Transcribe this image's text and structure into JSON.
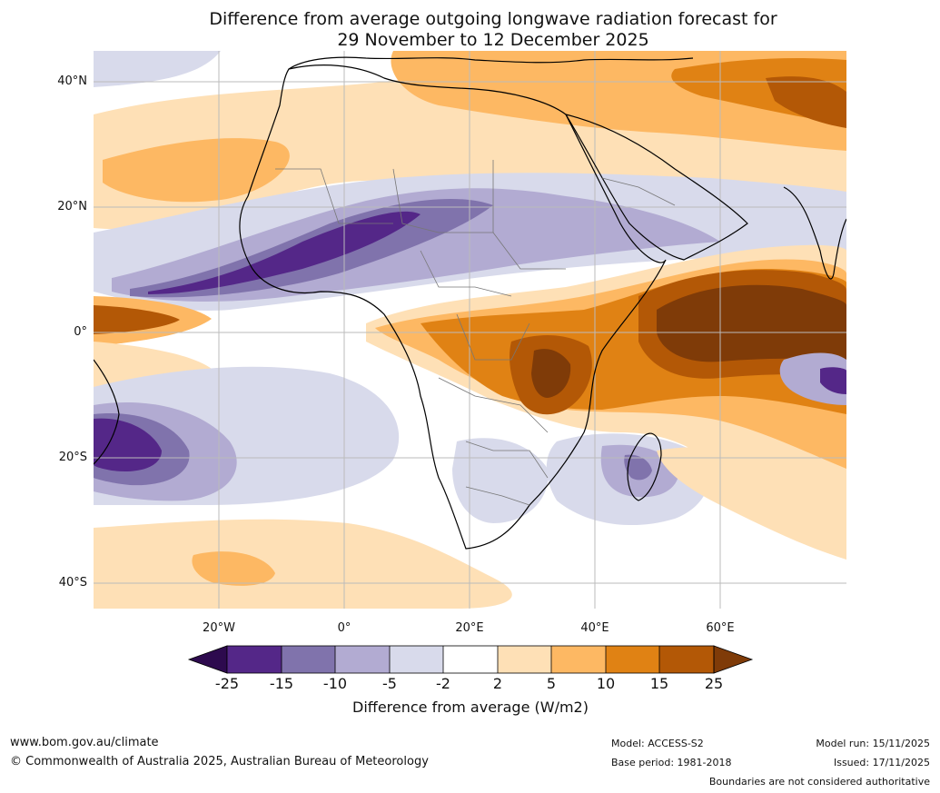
{
  "title": {
    "line1": "Difference from average outgoing longwave radiation forecast for",
    "line2": "29 November to 12 December 2025"
  },
  "axes": {
    "lat_labels": [
      "40°N",
      "20°N",
      "0°",
      "20°S",
      "40°S"
    ],
    "lon_labels": [
      "20°W",
      "0°",
      "20°E",
      "40°E",
      "60°E"
    ]
  },
  "legend": {
    "ticks": [
      "-25",
      "-15",
      "-10",
      "-5",
      "-2",
      "2",
      "5",
      "10",
      "15",
      "25"
    ],
    "title": "Difference from average (W/m2)",
    "colors": {
      "under": "#2d0a4e",
      "b1": "#542788",
      "b2": "#8073ac",
      "b3": "#b2abd2",
      "b4": "#d8daeb",
      "b5": "#ffffff",
      "b6": "#fee0b6",
      "b7": "#fdb863",
      "b8": "#e08214",
      "b9": "#b35806",
      "over": "#7f3b08"
    }
  },
  "footer": {
    "website": "www.bom.gov.au/climate",
    "copyright": "© Commonwealth of Australia 2025, Australian Bureau of Meteorology",
    "model": "Model: ACCESS-S2",
    "base_period": "Base period: 1981-2018",
    "model_run": "Model run: 15/11/2025",
    "issued": "Issued: 17/11/2025",
    "disclaimer": "Boundaries are not considered authoritative"
  }
}
